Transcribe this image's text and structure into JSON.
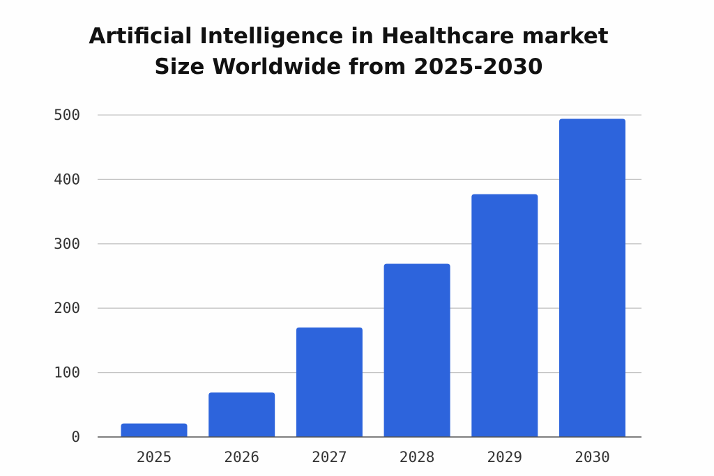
{
  "chart_data": {
    "type": "bar",
    "title_lines": [
      "Artificial Intelligence in Healthcare market",
      "Size Worldwide from 2025-2030"
    ],
    "categories": [
      "2025",
      "2026",
      "2027",
      "2028",
      "2029",
      "2030"
    ],
    "values": [
      21,
      69,
      170,
      269,
      377,
      494
    ],
    "xlabel": "",
    "ylabel": "",
    "ylim": [
      0,
      500
    ],
    "yticks": [
      "0",
      "100",
      "200",
      "300",
      "400",
      "500"
    ],
    "grid": true,
    "bar_color": "#2d64dc"
  }
}
